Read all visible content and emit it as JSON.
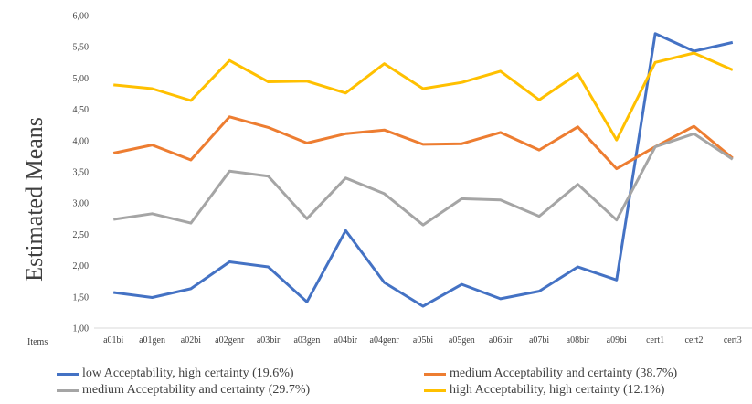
{
  "chart_data": {
    "type": "line",
    "ylabel": "Estimated Means",
    "xlabel": "Items",
    "ylim": [
      1.0,
      6.0
    ],
    "ytick_step": 0.5,
    "ytick_labels": [
      "1,00",
      "1,50",
      "2,00",
      "2,50",
      "3,00",
      "3,50",
      "4,00",
      "4,50",
      "5,00",
      "5,50",
      "6,00"
    ],
    "grid": false,
    "legend_position": "bottom",
    "categories": [
      "a01bi",
      "a01gen",
      "a02bi",
      "a02genr",
      "a03bir",
      "a03gen",
      "a04bir",
      "a04genr",
      "a05bi",
      "a05gen",
      "a06bir",
      "a07bi",
      "a08bir",
      "a09bi",
      "cert1",
      "cert2",
      "cert3"
    ],
    "series": [
      {
        "name": "low Acceptability, high certainty (19.6%)",
        "color": "#4472C4",
        "values": [
          1.57,
          1.49,
          1.63,
          2.06,
          1.98,
          1.42,
          2.56,
          1.73,
          1.35,
          1.7,
          1.47,
          1.59,
          1.98,
          1.77,
          5.71,
          5.43,
          5.57
        ]
      },
      {
        "name": "medium Acceptability and certainty (38.7%)",
        "color": "#ED7D31",
        "values": [
          3.8,
          3.93,
          3.69,
          4.38,
          4.21,
          3.96,
          4.11,
          4.17,
          3.94,
          3.95,
          4.13,
          3.85,
          4.22,
          3.55,
          3.9,
          4.23,
          3.72
        ]
      },
      {
        "name": "medium Acceptability and certainty (29.7%)",
        "color": "#A5A5A5",
        "values": [
          2.74,
          2.83,
          2.68,
          3.51,
          3.43,
          2.75,
          3.4,
          3.15,
          2.65,
          3.07,
          3.05,
          2.79,
          3.3,
          2.73,
          3.9,
          4.11,
          3.7
        ]
      },
      {
        "name": "high Acceptability, high certainty (12.1%)",
        "color": "#FFC000",
        "values": [
          4.89,
          4.83,
          4.64,
          5.28,
          4.94,
          4.95,
          4.76,
          5.23,
          4.83,
          4.93,
          5.11,
          4.65,
          5.07,
          4.01,
          5.25,
          5.4,
          5.13
        ]
      }
    ]
  }
}
